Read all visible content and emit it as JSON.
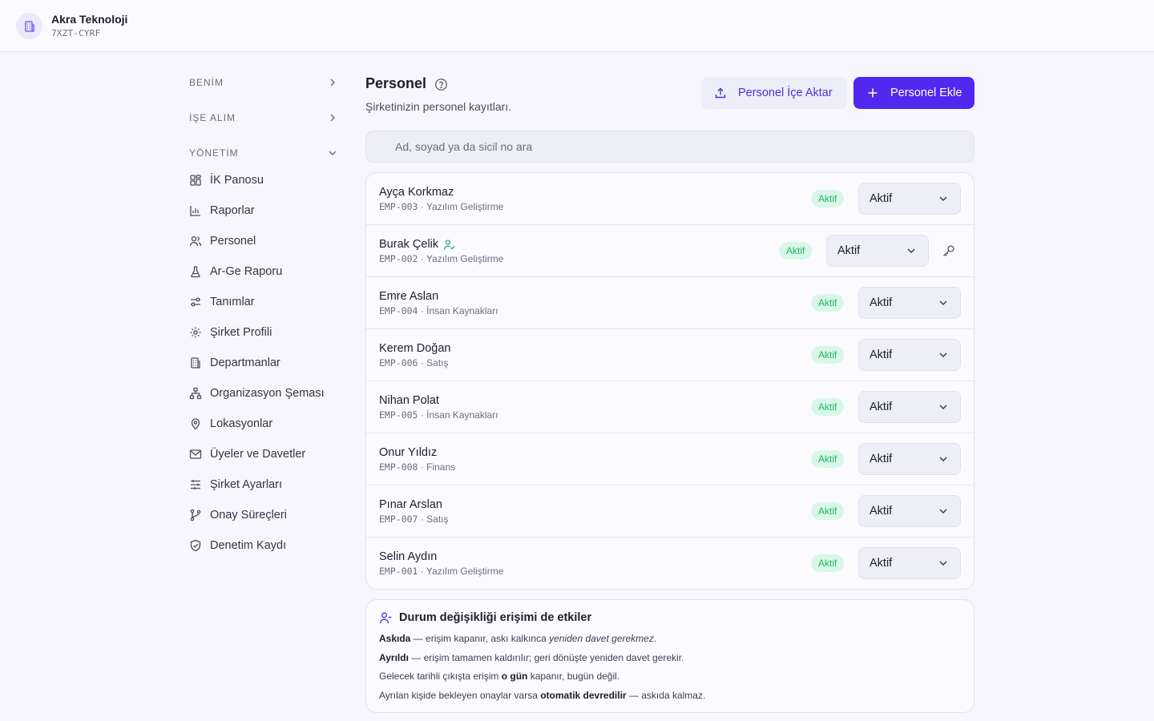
{
  "company": {
    "name": "Akra Teknoloji",
    "code": "7XZT-CYRF",
    "icon": "building-icon"
  },
  "sidebar": {
    "sections": [
      {
        "label": "BENİM",
        "state": "collapsed"
      },
      {
        "label": "İŞE ALIM",
        "state": "collapsed"
      },
      {
        "label": "YÖNETİM",
        "state": "expanded"
      }
    ],
    "items": [
      {
        "label": "İK Panosu",
        "icon": "dashboard-icon"
      },
      {
        "label": "Raporlar",
        "icon": "bar-chart-icon"
      },
      {
        "label": "Personel",
        "icon": "users-icon"
      },
      {
        "label": "Ar-Ge Raporu",
        "icon": "flask-icon"
      },
      {
        "label": "Tanımlar",
        "icon": "sliders-toggle-icon"
      },
      {
        "label": "Şirket Profili",
        "icon": "gear-icon"
      },
      {
        "label": "Departmanlar",
        "icon": "building-icon"
      },
      {
        "label": "Organizasyon Şeması",
        "icon": "org-chart-icon"
      },
      {
        "label": "Lokasyonlar",
        "icon": "map-pin-icon"
      },
      {
        "label": "Üyeler ve Davetler",
        "icon": "mail-icon"
      },
      {
        "label": "Şirket Ayarları",
        "icon": "settings-sliders-icon"
      },
      {
        "label": "Onay Süreçleri",
        "icon": "git-branch-icon"
      },
      {
        "label": "Denetim Kaydı",
        "icon": "shield-check-icon"
      }
    ]
  },
  "page": {
    "title": "Personel",
    "subtitle": "Şirketinizin personel kayıtları.",
    "import_label": "Personel İçe Aktar",
    "add_label": "Personel Ekle"
  },
  "search": {
    "placeholder": "Ad, soyad ya da sicil no ara",
    "value": ""
  },
  "employees": [
    {
      "name": "Ayça Korkmaz",
      "code": "EMP-003",
      "department": "Yazılım Geliştirme",
      "badge": "Aktif",
      "status": "Aktif",
      "has_account": false
    },
    {
      "name": "Burak Çelik",
      "code": "EMP-002",
      "department": "Yazılım Geliştirme",
      "badge": "Aktif",
      "status": "Aktif",
      "has_account": true
    },
    {
      "name": "Emre Aslan",
      "code": "EMP-004",
      "department": "İnsan Kaynakları",
      "badge": "Aktif",
      "status": "Aktif",
      "has_account": false
    },
    {
      "name": "Kerem Doğan",
      "code": "EMP-006",
      "department": "Satış",
      "badge": "Aktif",
      "status": "Aktif",
      "has_account": false
    },
    {
      "name": "Nihan Polat",
      "code": "EMP-005",
      "department": "İnsan Kaynakları",
      "badge": "Aktif",
      "status": "Aktif",
      "has_account": false
    },
    {
      "name": "Onur Yıldız",
      "code": "EMP-008",
      "department": "Finans",
      "badge": "Aktif",
      "status": "Aktif",
      "has_account": false
    },
    {
      "name": "Pınar Arslan",
      "code": "EMP-007",
      "department": "Satış",
      "badge": "Aktif",
      "status": "Aktif",
      "has_account": false
    },
    {
      "name": "Selin Aydın",
      "code": "EMP-001",
      "department": "Yazılım Geliştirme",
      "badge": "Aktif",
      "status": "Aktif",
      "has_account": false
    }
  ],
  "meta_separator": " · ",
  "info": {
    "title": "Durum değişikliği erişimi de etkiler",
    "lines": [
      {
        "b1": "Askıda",
        "t1": " — erişim kapanır, askı kalkınca ",
        "i1": "yeniden davet gerekmez",
        "t2": "."
      },
      {
        "b1": "Ayrıldı",
        "t1": " — erişim tamamen kaldırılır; geri dönüşte yeniden davet gerekir.",
        "i1": "",
        "t2": ""
      },
      {
        "b1": "",
        "t1": "Gelecek tarihli çıkışta erişim ",
        "b2": "o gün",
        "t2": " kapanır, bugün değil."
      },
      {
        "b1": "",
        "t1": "Ayrılan kişide bekleyen onaylar varsa ",
        "b2": "otomatik devredilir",
        "t2": " — askıda kalmaz."
      }
    ]
  },
  "colors": {
    "accent": "#5128ef",
    "badge_bg": "#d9f7e6",
    "badge_text": "#22b36a"
  }
}
